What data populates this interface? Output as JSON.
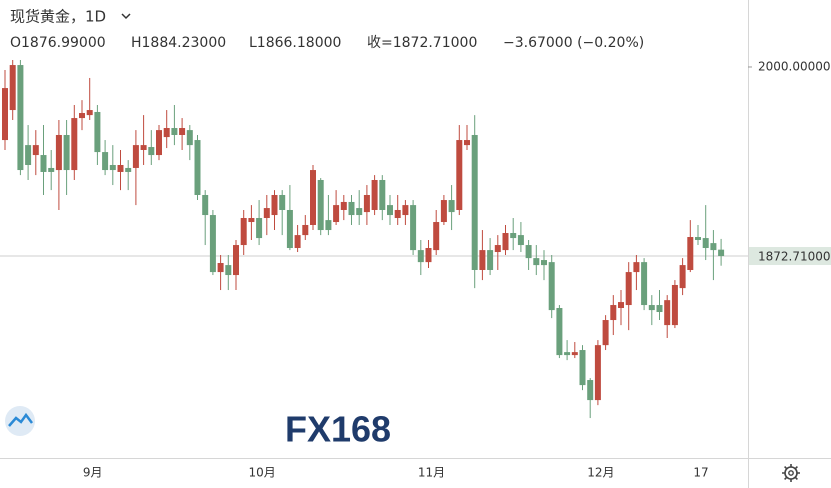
{
  "chart_data": {
    "type": "candlestick",
    "title": "现货黄金，1D",
    "ohlc_labels": {
      "open": "O1876.99000",
      "high": "H1884.23000",
      "low": "L1866.18000",
      "close": "收=1872.71000",
      "change": "−3.67000 (−0.20%)"
    },
    "watermark": "FX168",
    "categories": [
      null,
      null,
      null,
      null,
      null,
      null,
      null,
      null,
      null,
      null,
      null,
      "9月",
      null,
      null,
      null,
      null,
      null,
      null,
      null,
      null,
      null,
      null,
      null,
      null,
      null,
      null,
      null,
      null,
      null,
      null,
      null,
      null,
      null,
      "10月",
      null,
      null,
      null,
      null,
      null,
      null,
      null,
      null,
      null,
      null,
      null,
      null,
      null,
      null,
      null,
      null,
      null,
      null,
      null,
      null,
      null,
      "11月",
      null,
      null,
      null,
      null,
      null,
      null,
      null,
      null,
      null,
      null,
      null,
      null,
      null,
      null,
      null,
      null,
      null,
      null,
      null,
      null,
      null,
      "12月",
      null,
      null,
      null,
      null,
      null,
      null,
      null,
      null,
      null,
      null,
      null,
      null,
      "17",
      null,
      null,
      null
    ],
    "open": [
      1950.8,
      1971.0,
      2001.3,
      1947.4,
      1940.7,
      1940.7,
      1932.0,
      1930.6,
      1954.2,
      1930.6,
      1965.6,
      1967.6,
      1969.7,
      1942.7,
      1934.0,
      1929.3,
      1932.0,
      1932.0,
      1944.1,
      1946.1,
      1940.7,
      1952.8,
      1958.9,
      1954.2,
      1957.5,
      1950.8,
      1913.8,
      1900.3,
      1861.9,
      1866.6,
      1859.9,
      1880.1,
      1895.6,
      1898.3,
      1898.3,
      1900.3,
      1913.8,
      1903.7,
      1878.1,
      1886.8,
      1893.6,
      1923.9,
      1896.9,
      1895.6,
      1903.7,
      1909.1,
      1905.0,
      1902.3,
      1903.7,
      1923.9,
      1907.0,
      1898.3,
      1900.3,
      1907.0,
      1876.7,
      1868.6,
      1876.7,
      1895.6,
      1910.4,
      1903.7,
      1947.4,
      1954.2,
      1863.3,
      1876.7,
      1875.4,
      1876.7,
      1888.2,
      1886.8,
      1880.1,
      1871.3,
      1870.0,
      1868.6,
      1837.7,
      1808.0,
      1806.0,
      1809.4,
      1789.2,
      1775.7,
      1812.7,
      1829.6,
      1837.7,
      1839.7,
      1861.9,
      1868.6,
      1839.7,
      1839.7,
      1826.2,
      1826.2,
      1851.1,
      1863.3,
      1885.5,
      1884.8,
      1881.4,
      1876.99
    ],
    "high": [
      1998.0,
      2004.7,
      2004.7,
      1960.9,
      1957.5,
      1960.9,
      1944.1,
      1964.3,
      1964.3,
      1974.4,
      1977.7,
      1992.6,
      1974.4,
      1950.8,
      1947.4,
      1944.1,
      1937.3,
      1957.5,
      1967.6,
      1957.5,
      1960.9,
      1971.0,
      1974.4,
      1965.6,
      1960.9,
      1954.2,
      1917.1,
      1903.7,
      1873.4,
      1873.4,
      1883.5,
      1903.7,
      1907.0,
      1910.4,
      1913.8,
      1917.1,
      1917.1,
      1920.5,
      1893.6,
      1900.3,
      1934.0,
      1925.2,
      1913.8,
      1917.1,
      1913.8,
      1913.8,
      1917.1,
      1920.5,
      1927.2,
      1927.2,
      1913.8,
      1913.8,
      1910.4,
      1910.4,
      1883.5,
      1883.5,
      1903.7,
      1913.8,
      1920.5,
      1960.9,
      1960.9,
      1967.6,
      1890.2,
      1884.8,
      1886.8,
      1893.6,
      1898.3,
      1895.6,
      1883.5,
      1880.1,
      1876.7,
      1873.4,
      1839.7,
      1816.1,
      1814.8,
      1812.7,
      1790.5,
      1816.1,
      1832.9,
      1846.4,
      1849.8,
      1868.6,
      1873.4,
      1871.3,
      1846.4,
      1849.8,
      1846.4,
      1856.5,
      1871.3,
      1896.9,
      1893.6,
      1907.0,
      1890.2,
      1884.23
    ],
    "low": [
      1944.1,
      1964.3,
      1927.2,
      1923.9,
      1927.2,
      1913.8,
      1917.1,
      1903.7,
      1913.8,
      1923.9,
      1957.5,
      1964.3,
      1934.0,
      1927.2,
      1920.5,
      1917.1,
      1917.1,
      1907.0,
      1934.0,
      1934.0,
      1937.3,
      1945.4,
      1947.4,
      1944.1,
      1937.3,
      1910.4,
      1880.1,
      1859.9,
      1849.8,
      1849.8,
      1849.8,
      1873.4,
      1883.5,
      1880.1,
      1886.8,
      1890.2,
      1886.8,
      1876.7,
      1875.4,
      1883.5,
      1890.2,
      1886.8,
      1886.8,
      1893.6,
      1896.9,
      1893.6,
      1893.6,
      1893.6,
      1900.3,
      1896.9,
      1893.6,
      1893.6,
      1893.6,
      1873.4,
      1859.9,
      1864.6,
      1873.4,
      1893.6,
      1890.2,
      1900.3,
      1944.1,
      1851.1,
      1856.5,
      1859.9,
      1863.3,
      1873.4,
      1876.7,
      1875.4,
      1863.3,
      1859.9,
      1856.5,
      1830.9,
      1804.0,
      1802.6,
      1804.0,
      1782.4,
      1763.6,
      1772.3,
      1809.4,
      1819.5,
      1826.2,
      1822.8,
      1849.8,
      1836.3,
      1826.2,
      1829.6,
      1817.5,
      1824.2,
      1846.4,
      1861.9,
      1880.1,
      1870.0,
      1856.5,
      1866.18
    ],
    "close": [
      1985.8,
      2001.3,
      1930.6,
      1934.0,
      1947.4,
      1929.3,
      1929.3,
      1954.2,
      1930.6,
      1965.6,
      1969.0,
      1971.0,
      1942.7,
      1930.6,
      1930.6,
      1934.0,
      1929.3,
      1947.4,
      1947.4,
      1940.7,
      1957.5,
      1958.9,
      1954.2,
      1958.9,
      1947.4,
      1913.8,
      1900.3,
      1861.9,
      1868.0,
      1859.9,
      1880.1,
      1898.3,
      1898.3,
      1884.8,
      1905.0,
      1913.8,
      1903.7,
      1878.1,
      1886.8,
      1893.6,
      1930.6,
      1890.2,
      1890.2,
      1907.0,
      1909.1,
      1900.3,
      1900.3,
      1913.8,
      1923.9,
      1903.7,
      1900.3,
      1903.7,
      1907.0,
      1876.7,
      1868.6,
      1878.1,
      1895.6,
      1910.4,
      1902.3,
      1950.8,
      1950.8,
      1863.3,
      1876.7,
      1863.3,
      1880.1,
      1888.2,
      1884.8,
      1880.1,
      1871.3,
      1866.6,
      1866.6,
      1836.3,
      1806.0,
      1806.0,
      1808.0,
      1785.8,
      1775.7,
      1812.7,
      1829.6,
      1839.7,
      1841.7,
      1861.9,
      1868.6,
      1839.7,
      1836.3,
      1835.0,
      1843.0,
      1853.2,
      1866.6,
      1885.5,
      1883.5,
      1878.1,
      1876.7,
      1872.71
    ],
    "up_color": "#bf4b3f",
    "down_color": "#6aa07c",
    "ylim": [
      1736.7,
      2045.1
    ],
    "yticks": [
      {
        "value": 2000,
        "label": "2000.00000"
      }
    ],
    "last_price": {
      "value": 1872.71,
      "label": "1872.71000"
    },
    "grid": false
  }
}
